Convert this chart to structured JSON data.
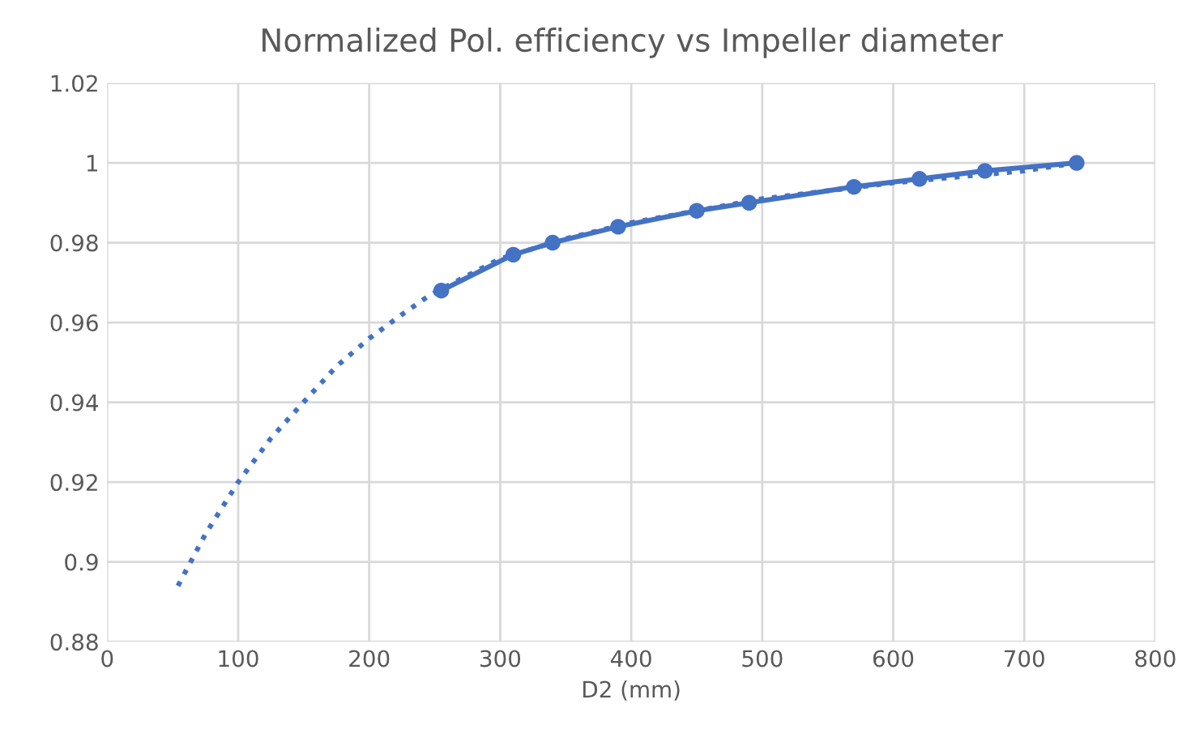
{
  "chart_data": {
    "type": "line",
    "title": "Normalized Pol. efficiency vs Impeller diameter",
    "xlabel": "D2 (mm)",
    "xlim": [
      0,
      800
    ],
    "xticks": [
      0,
      100,
      200,
      300,
      400,
      500,
      600,
      700,
      800
    ],
    "ylim": [
      0.88,
      1.02
    ],
    "yticks": [
      0.88,
      0.9,
      0.92,
      0.94,
      0.96,
      0.98,
      1,
      1.02
    ],
    "grid": true,
    "series": [
      {
        "color": "#4472c4",
        "marker": "circle",
        "line_style": "solid",
        "x": [
          255,
          310,
          340,
          390,
          450,
          490,
          570,
          620,
          670,
          740
        ],
        "values": [
          0.968,
          0.977,
          0.98,
          0.984,
          0.988,
          0.99,
          0.994,
          0.996,
          0.998,
          1.0
        ]
      },
      {
        "color": "#4472c4",
        "marker": "none",
        "line_style": "dotted",
        "x": [
          54,
          75,
          100,
          125,
          147,
          175,
          200,
          225,
          247,
          300,
          350,
          400,
          450,
          500,
          600,
          700,
          740
        ],
        "values": [
          0.894,
          0.907,
          0.92,
          0.931,
          0.939,
          0.949,
          0.956,
          0.962,
          0.967,
          0.976,
          0.981,
          0.985,
          0.988,
          0.991,
          0.995,
          0.998,
          1.0
        ]
      }
    ]
  }
}
